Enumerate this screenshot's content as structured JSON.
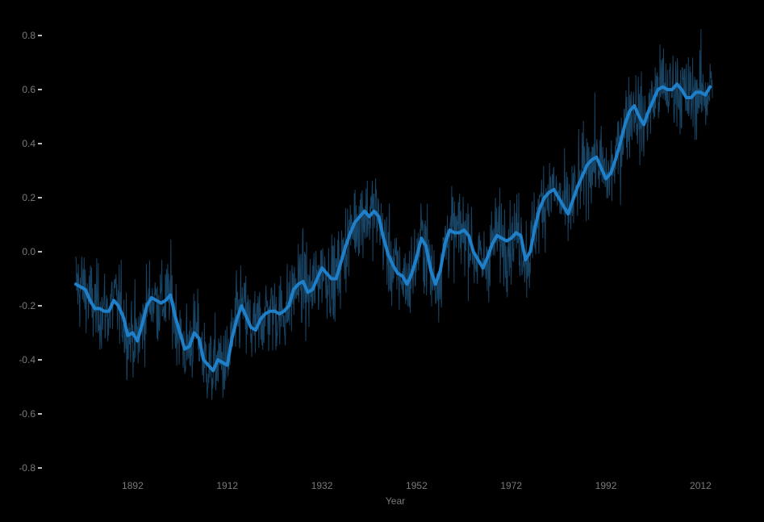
{
  "chart_data": {
    "type": "line",
    "title": "",
    "xlabel": "Year",
    "ylabel": "",
    "xlim": [
      1880,
      2015
    ],
    "ylim": [
      -0.8,
      0.8
    ],
    "x_ticks": [
      1892,
      1912,
      1932,
      1952,
      1972,
      1992,
      2012
    ],
    "y_ticks": [
      "0.8",
      "0.6",
      "0.4",
      "0.2",
      "0.0",
      "-0.2",
      "-0.4",
      "-0.6",
      "-0.8"
    ],
    "grid": false,
    "legend": "none",
    "colors": {
      "background": "#000000",
      "smooth_line": "#1f7fc8",
      "raw_line": "#1b4a6e",
      "text": "#7a7a7a",
      "axis_tick": "#ffffff"
    },
    "series": [
      {
        "role": "smoothed",
        "x": [
          1880,
          1881,
          1882,
          1883,
          1884,
          1885,
          1886,
          1887,
          1888,
          1889,
          1890,
          1891,
          1892,
          1893,
          1894,
          1895,
          1896,
          1897,
          1898,
          1899,
          1900,
          1901,
          1902,
          1903,
          1904,
          1905,
          1906,
          1907,
          1908,
          1909,
          1910,
          1911,
          1912,
          1913,
          1914,
          1915,
          1916,
          1917,
          1918,
          1919,
          1920,
          1921,
          1922,
          1923,
          1924,
          1925,
          1926,
          1927,
          1928,
          1929,
          1930,
          1931,
          1932,
          1933,
          1934,
          1935,
          1936,
          1937,
          1938,
          1939,
          1940,
          1941,
          1942,
          1943,
          1944,
          1945,
          1946,
          1947,
          1948,
          1949,
          1950,
          1951,
          1952,
          1953,
          1954,
          1955,
          1956,
          1957,
          1958,
          1959,
          1960,
          1961,
          1962,
          1963,
          1964,
          1965,
          1966,
          1967,
          1968,
          1969,
          1970,
          1971,
          1972,
          1973,
          1974,
          1975,
          1976,
          1977,
          1978,
          1979,
          1980,
          1981,
          1982,
          1983,
          1984,
          1985,
          1986,
          1987,
          1988,
          1989,
          1990,
          1991,
          1992,
          1993,
          1994,
          1995,
          1996,
          1997,
          1998,
          1999,
          2000,
          2001,
          2002,
          2003,
          2004,
          2005,
          2006,
          2007,
          2008,
          2009,
          2010,
          2011,
          2012,
          2013,
          2014
        ],
        "values": [
          -0.12,
          -0.13,
          -0.14,
          -0.18,
          -0.21,
          -0.21,
          -0.22,
          -0.22,
          -0.18,
          -0.2,
          -0.24,
          -0.31,
          -0.3,
          -0.33,
          -0.27,
          -0.2,
          -0.17,
          -0.18,
          -0.19,
          -0.18,
          -0.16,
          -0.24,
          -0.3,
          -0.36,
          -0.35,
          -0.3,
          -0.32,
          -0.4,
          -0.42,
          -0.44,
          -0.4,
          -0.41,
          -0.42,
          -0.32,
          -0.25,
          -0.2,
          -0.24,
          -0.28,
          -0.29,
          -0.25,
          -0.23,
          -0.22,
          -0.22,
          -0.23,
          -0.22,
          -0.2,
          -0.14,
          -0.12,
          -0.11,
          -0.15,
          -0.14,
          -0.1,
          -0.06,
          -0.08,
          -0.1,
          -0.1,
          -0.04,
          0.02,
          0.07,
          0.11,
          0.13,
          0.15,
          0.13,
          0.15,
          0.13,
          0.05,
          -0.01,
          -0.05,
          -0.08,
          -0.09,
          -0.12,
          -0.08,
          -0.02,
          0.05,
          0.02,
          -0.07,
          -0.12,
          -0.07,
          0.03,
          0.08,
          0.07,
          0.07,
          0.08,
          0.06,
          0.0,
          -0.03,
          -0.06,
          -0.02,
          0.03,
          0.06,
          0.05,
          0.04,
          0.05,
          0.07,
          0.06,
          -0.03,
          0.0,
          0.09,
          0.16,
          0.2,
          0.22,
          0.23,
          0.2,
          0.17,
          0.14,
          0.19,
          0.24,
          0.28,
          0.32,
          0.34,
          0.35,
          0.31,
          0.27,
          0.29,
          0.34,
          0.4,
          0.47,
          0.52,
          0.54,
          0.5,
          0.47,
          0.52,
          0.56,
          0.6,
          0.61,
          0.6,
          0.6,
          0.62,
          0.6,
          0.57,
          0.57,
          0.59,
          0.59,
          0.58,
          0.61
        ]
      }
    ]
  }
}
